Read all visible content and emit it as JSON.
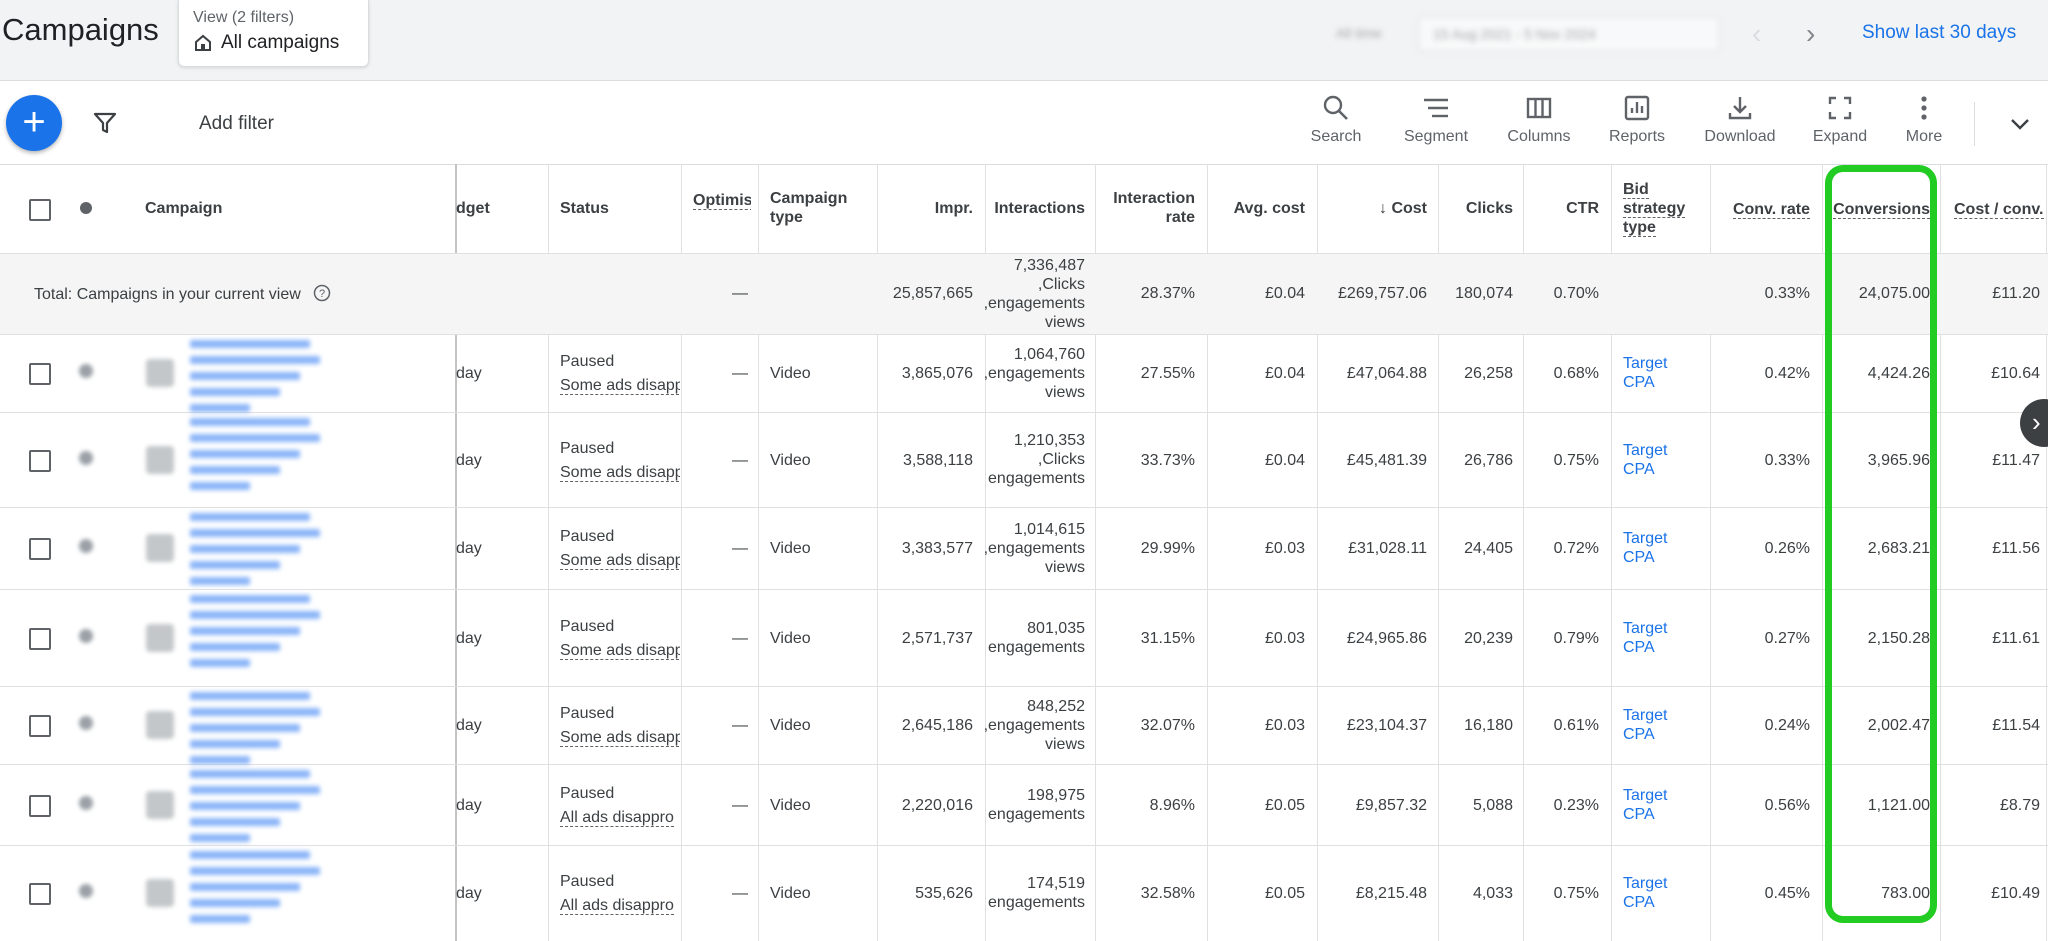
{
  "header": {
    "title": "Campaigns",
    "view_sub": "View (2 filters)",
    "view_main": "All campaigns",
    "date_label": "All time",
    "date_range": "15 Aug 2021 - 5 Nov 2024",
    "show_last": "Show last 30 days"
  },
  "toolbar": {
    "add_filter": "Add filter",
    "tools": [
      {
        "label": "Search",
        "icon": "search-icon"
      },
      {
        "label": "Segment",
        "icon": "segment-icon"
      },
      {
        "label": "Columns",
        "icon": "columns-icon"
      },
      {
        "label": "Reports",
        "icon": "reports-icon"
      },
      {
        "label": "Download",
        "icon": "download-icon"
      },
      {
        "label": "Expand",
        "icon": "expand-icon"
      },
      {
        "label": "More",
        "icon": "more-vert-icon"
      }
    ]
  },
  "table": {
    "headers": {
      "campaign": "Campaign",
      "budget": "dget",
      "status": "Status",
      "optimis": "Optimis",
      "campaign_type_1": "Campaign",
      "campaign_type_2": "type",
      "impr": "Impr.",
      "interactions": "Interactions",
      "interaction_rate_1": "Interaction",
      "interaction_rate_2": "rate",
      "avg_cost": "Avg. cost",
      "cost": "Cost",
      "clicks": "Clicks",
      "ctr": "CTR",
      "bid_1": "Bid",
      "bid_2": "strategy",
      "bid_3": "type",
      "conv_rate": "Conv. rate",
      "conversions": "Conversions",
      "cost_conv": "Cost / conv."
    },
    "total": {
      "label": "Total: Campaigns in your current view",
      "optimis": "—",
      "impr": "25,857,665",
      "inter_1": "7,336,487",
      "inter_2": "Clicks,",
      "inter_3": "engagements,",
      "inter_4": "views",
      "interaction_rate": "28.37%",
      "avg_cost": "£0.04",
      "cost": "£269,757.06",
      "clicks": "180,074",
      "ctr": "0.70%",
      "conv_rate": "0.33%",
      "conversions": "24,075.00",
      "cost_conv": "£11.20"
    },
    "rows": [
      {
        "budget": "day",
        "status": "Paused",
        "status_sub": "Some ads disapp",
        "optimis": "—",
        "type": "Video",
        "impr": "3,865,076",
        "inter": [
          "1,064,760",
          "engagements,",
          "views"
        ],
        "rate": "27.55%",
        "avg": "£0.04",
        "cost": "£47,064.88",
        "clicks": "26,258",
        "ctr": "0.68%",
        "bid_1": "Target",
        "bid_2": "CPA",
        "conv_rate": "0.42%",
        "conversions": "4,424.26",
        "cost_conv": "£10.64"
      },
      {
        "budget": "day",
        "status": "Paused",
        "status_sub": "Some ads disapp",
        "optimis": "—",
        "type": "Video",
        "impr": "3,588,118",
        "inter": [
          "1,210,353",
          "Clicks,",
          "engagements"
        ],
        "rate": "33.73%",
        "avg": "£0.04",
        "cost": "£45,481.39",
        "clicks": "26,786",
        "ctr": "0.75%",
        "bid_1": "Target",
        "bid_2": "CPA",
        "conv_rate": "0.33%",
        "conversions": "3,965.96",
        "cost_conv": "£11.47"
      },
      {
        "budget": "day",
        "status": "Paused",
        "status_sub": "Some ads disapp",
        "optimis": "—",
        "type": "Video",
        "impr": "3,383,577",
        "inter": [
          "1,014,615",
          "engagements,",
          "views"
        ],
        "rate": "29.99%",
        "avg": "£0.03",
        "cost": "£31,028.11",
        "clicks": "24,405",
        "ctr": "0.72%",
        "bid_1": "Target",
        "bid_2": "CPA",
        "conv_rate": "0.26%",
        "conversions": "2,683.21",
        "cost_conv": "£11.56"
      },
      {
        "budget": "day",
        "status": "Paused",
        "status_sub": "Some ads disapp",
        "optimis": "—",
        "type": "Video",
        "impr": "2,571,737",
        "inter": [
          "801,035",
          "engagements"
        ],
        "rate": "31.15%",
        "avg": "£0.03",
        "cost": "£24,965.86",
        "clicks": "20,239",
        "ctr": "0.79%",
        "bid_1": "Target",
        "bid_2": "CPA",
        "conv_rate": "0.27%",
        "conversions": "2,150.28",
        "cost_conv": "£11.61"
      },
      {
        "budget": "day",
        "status": "Paused",
        "status_sub": "Some ads disapp",
        "optimis": "—",
        "type": "Video",
        "impr": "2,645,186",
        "inter": [
          "848,252",
          "engagements,",
          "views"
        ],
        "rate": "32.07%",
        "avg": "£0.03",
        "cost": "£23,104.37",
        "clicks": "16,180",
        "ctr": "0.61%",
        "bid_1": "Target",
        "bid_2": "CPA",
        "conv_rate": "0.24%",
        "conversions": "2,002.47",
        "cost_conv": "£11.54"
      },
      {
        "budget": "day",
        "status": "Paused",
        "status_sub": "All ads disappro",
        "optimis": "—",
        "type": "Video",
        "impr": "2,220,016",
        "inter": [
          "198,975",
          "engagements"
        ],
        "rate": "8.96%",
        "avg": "£0.05",
        "cost": "£9,857.32",
        "clicks": "5,088",
        "ctr": "0.23%",
        "bid_1": "Target",
        "bid_2": "CPA",
        "conv_rate": "0.56%",
        "conversions": "1,121.00",
        "cost_conv": "£8.79"
      },
      {
        "budget": "day",
        "status": "Paused",
        "status_sub": "All ads disappro",
        "optimis": "—",
        "type": "Video",
        "impr": "535,626",
        "inter": [
          "174,519",
          "engagements"
        ],
        "rate": "32.58%",
        "avg": "£0.05",
        "cost": "£8,215.48",
        "clicks": "4,033",
        "ctr": "0.75%",
        "bid_1": "Target",
        "bid_2": "CPA",
        "conv_rate": "0.45%",
        "conversions": "783.00",
        "cost_conv": "£10.49"
      }
    ]
  },
  "colors": {
    "accent": "#1a73e8",
    "highlight": "#22cc22"
  }
}
